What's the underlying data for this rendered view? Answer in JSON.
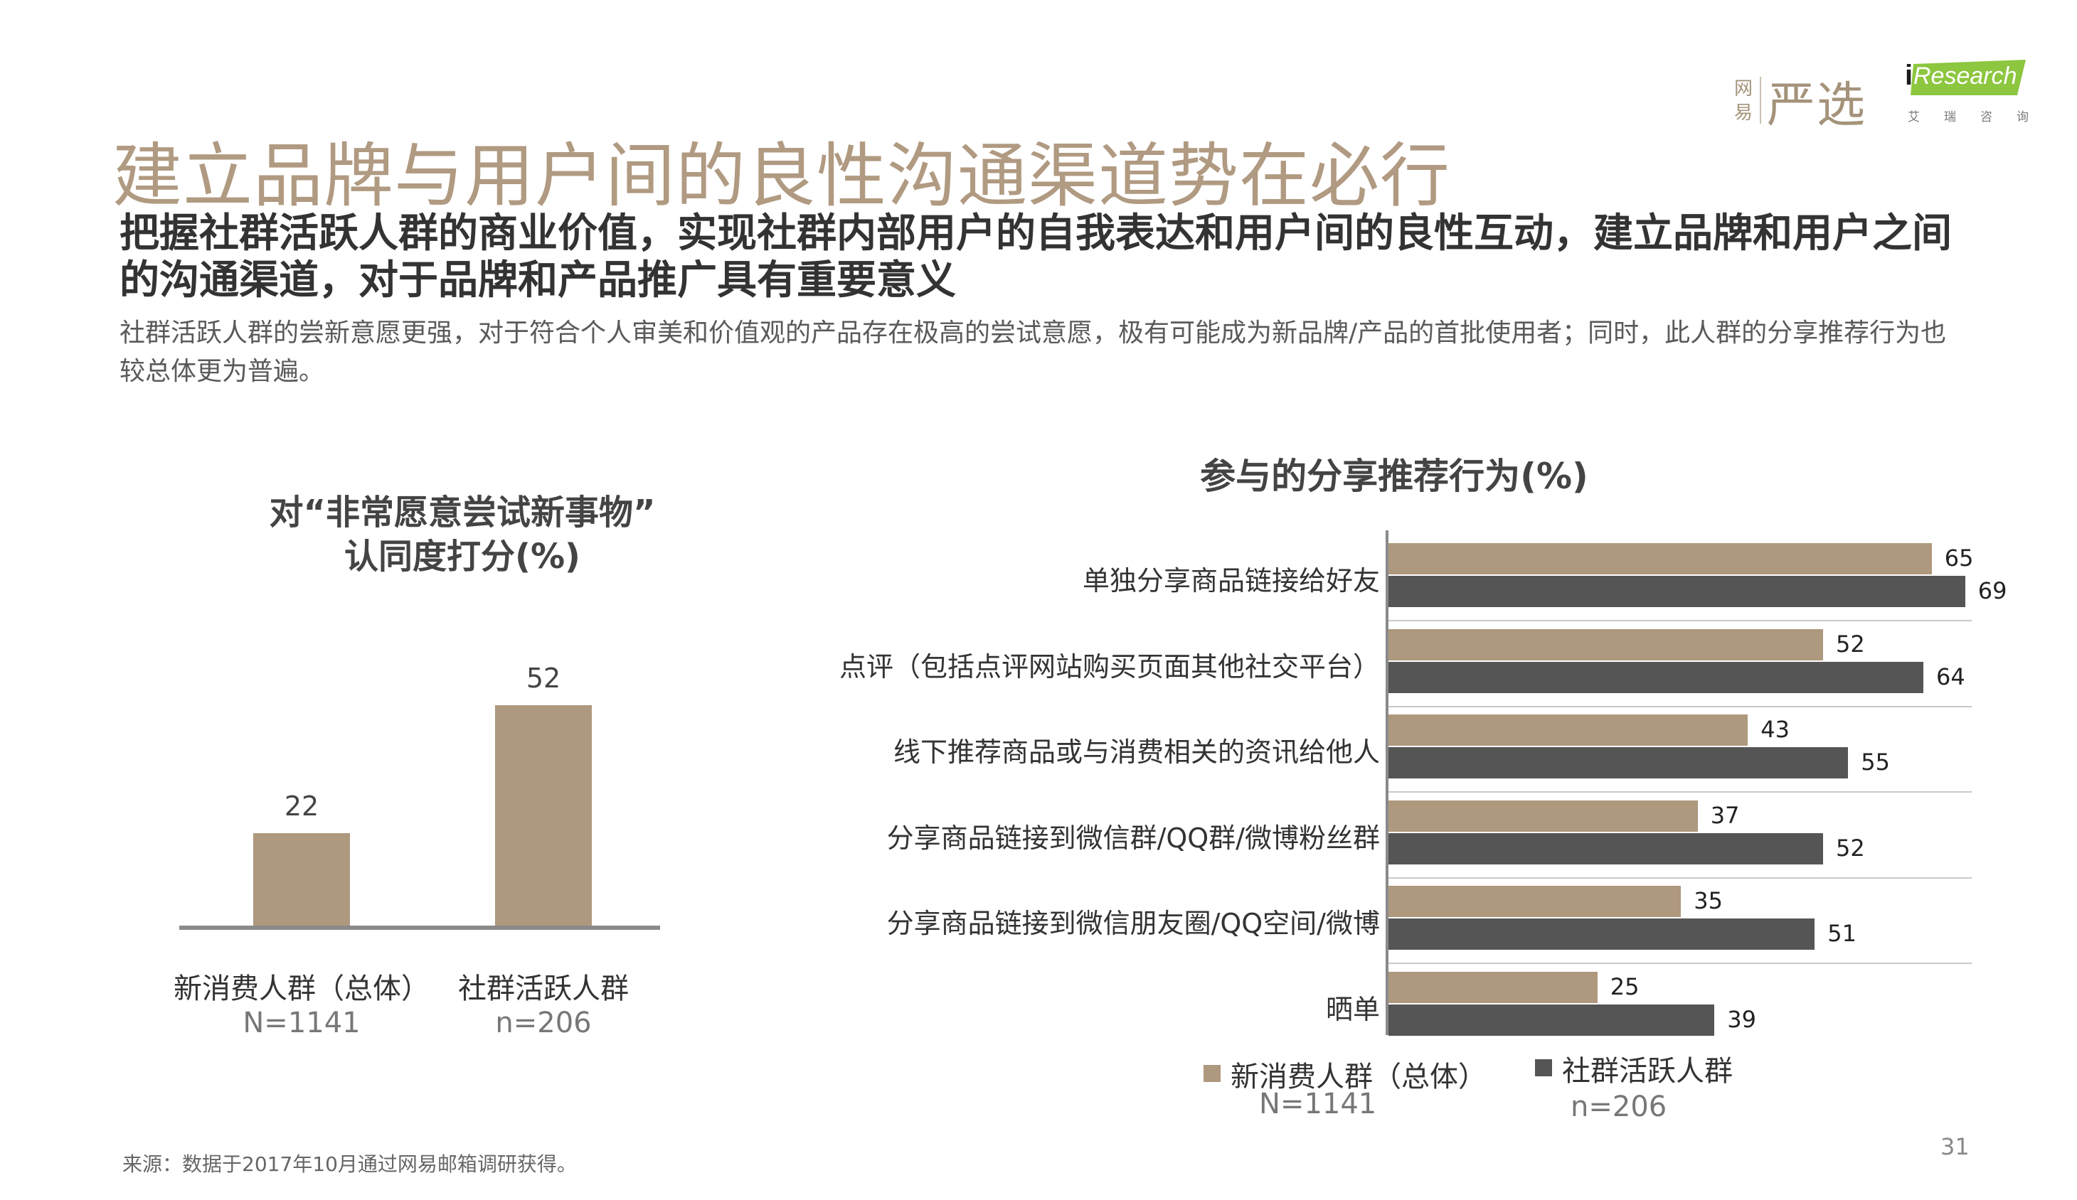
{
  "logo": {
    "yanxuan_small": [
      "网",
      "易"
    ],
    "yanxuan_big": "严选",
    "iresearch_i": "i",
    "iresearch_text": "Research",
    "iresearch_sub": [
      "艾",
      "瑞",
      "咨",
      "询"
    ]
  },
  "header": {
    "title": "建立品牌与用户间的良性沟通渠道势在必行",
    "subtitle": "把握社群活跃人群的商业价值，实现社群内部用户的自我表达和用户间的良性互动，建立品牌和用户之间的沟通渠道，对于品牌和产品推广具有重要意义",
    "description": "社群活跃人群的尝新意愿更强，对于符合个人审美和价值观的产品存在极高的尝试意愿，极有可能成为新品牌/产品的首批使用者；同时，此人群的分享推荐行为也较总体更为普遍。"
  },
  "footer": {
    "source": "来源：数据于2017年10月通过网易邮箱调研获得。",
    "page_number": "31"
  },
  "chart_data": [
    {
      "type": "bar",
      "title_line1": "对“非常愿意尝试新事物”",
      "title_line2": "认同度打分(%)",
      "categories": [
        "新消费人群（总体）",
        "社群活跃人群"
      ],
      "sample_sizes": [
        "N=1141",
        "n=206"
      ],
      "values": [
        22,
        52
      ],
      "ylim": [
        0,
        60
      ],
      "color": "#ae987e"
    },
    {
      "type": "bar",
      "orientation": "horizontal",
      "title": "参与的分享推荐行为(%)",
      "categories": [
        "单独分享商品链接给好友",
        "点评（包括点评网站购买页面其他社交平台）",
        "线下推荐商品或与消费相关的资讯给他人",
        "分享商品链接到微信群/QQ群/微博粉丝群",
        "分享商品链接到微信朋友圈/QQ空间/微博",
        "晒单"
      ],
      "series": [
        {
          "name": "新消费人群（总体）",
          "sample": "N=1141",
          "color": "#ae987e",
          "values": [
            65,
            52,
            43,
            37,
            35,
            25
          ]
        },
        {
          "name": "社群活跃人群",
          "sample": "n=206",
          "color": "#555555",
          "values": [
            69,
            64,
            55,
            52,
            51,
            39
          ]
        }
      ],
      "xlim": [
        0,
        80
      ],
      "legend_position": "bottom"
    }
  ]
}
